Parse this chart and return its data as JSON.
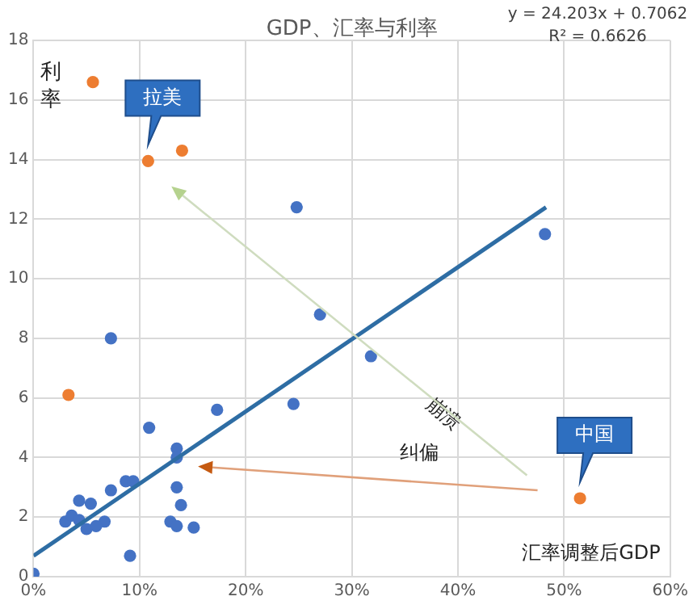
{
  "chart_data": {
    "type": "scatter",
    "title": "GDP、汇率与利率",
    "xlabel": "汇率调整后GDP",
    "ylabel": "利率",
    "xlim": [
      0,
      60
    ],
    "ylim": [
      0,
      18
    ],
    "xticks": [
      {
        "value": 0,
        "label": "0%"
      },
      {
        "value": 10,
        "label": "10%"
      },
      {
        "value": 20,
        "label": "20%"
      },
      {
        "value": 30,
        "label": "30%"
      },
      {
        "value": 40,
        "label": "40%"
      },
      {
        "value": 50,
        "label": "50%"
      },
      {
        "value": 60,
        "label": "60%"
      }
    ],
    "yticks": [
      0,
      2,
      4,
      6,
      8,
      10,
      12,
      14,
      16,
      18
    ],
    "grid": true,
    "legend": false,
    "marker": "circle",
    "series": [
      {
        "color": "#4472c4",
        "x": [
          0,
          7.3,
          10.9,
          17.3,
          24.5,
          27,
          13.5,
          13.5,
          8.7,
          9.4,
          7.3,
          4.3,
          5.4,
          13.5,
          13.9,
          12.9,
          13.5,
          15.1,
          9.1,
          3.0,
          3.6,
          4.3,
          5.0,
          5.6,
          6.2,
          6.6,
          6.7,
          5.9,
          24.8,
          48.2,
          31.8
        ],
        "values": [
          0.1,
          8.0,
          5.0,
          5.6,
          5.8,
          8.8,
          4.3,
          4.0,
          3.2,
          3.2,
          2.9,
          2.55,
          2.45,
          3.0,
          2.4,
          1.85,
          1.7,
          1.65,
          0.7,
          1.85,
          2.05,
          1.9,
          1.6,
          null,
          null,
          null,
          1.85,
          1.7,
          12.4,
          11.5,
          7.4
        ]
      },
      {
        "color": "#ed7d31",
        "x": [
          3.3,
          5.6,
          10.8,
          14.0,
          51.5
        ],
        "values": [
          6.1,
          16.6,
          13.95,
          14.3,
          2.63
        ]
      },
      {
        "type": "line",
        "marker": "none",
        "color": "#2e6da4",
        "x": [
          0,
          48.3
        ],
        "values": [
          0.7,
          12.4
        ]
      }
    ],
    "annotations": [
      "y = 24.203x + 0.7062",
      "R² = 0.6626",
      {
        "text": "拉美",
        "x": 10.8,
        "y": 13.95
      },
      {
        "text": "中国",
        "x": 51.5,
        "y": 2.63
      },
      "崩溃",
      "纠偏"
    ]
  }
}
